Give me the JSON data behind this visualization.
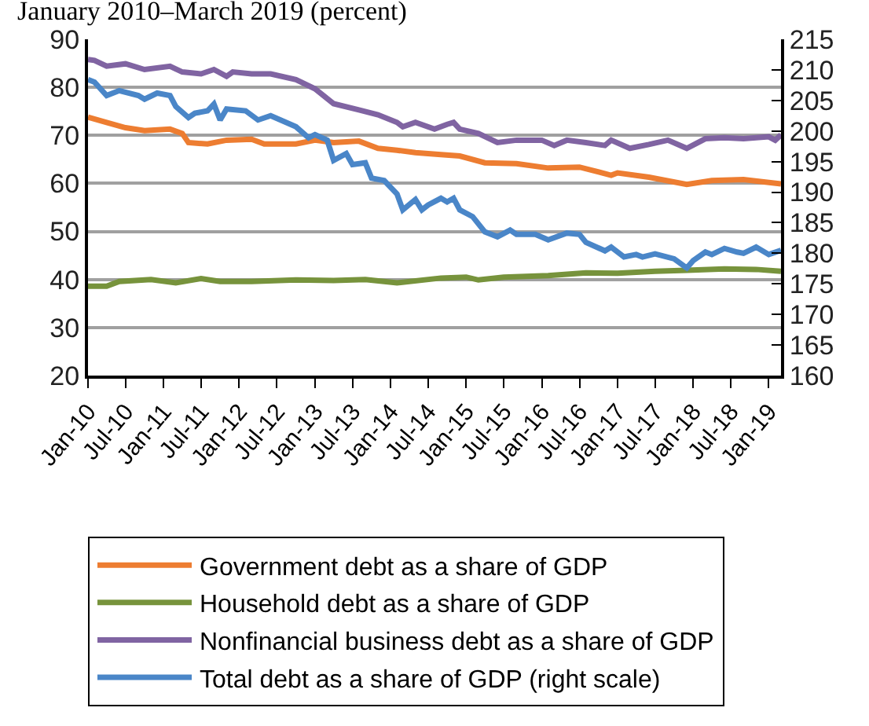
{
  "chart_data": {
    "type": "line",
    "title": "January 2010–March 2019 (percent)",
    "xlim": [
      "2010-01",
      "2019-03"
    ],
    "xticks": [
      {
        "value": "2010-01",
        "label": "Jan-10"
      },
      {
        "value": "2010-07",
        "label": "Jul-10"
      },
      {
        "value": "2011-01",
        "label": "Jan-11"
      },
      {
        "value": "2011-07",
        "label": "Jul-11"
      },
      {
        "value": "2012-01",
        "label": "Jan-12"
      },
      {
        "value": "2012-07",
        "label": "Jul-12"
      },
      {
        "value": "2013-01",
        "label": "Jan-13"
      },
      {
        "value": "2013-07",
        "label": "Jul-13"
      },
      {
        "value": "2014-01",
        "label": "Jan-14"
      },
      {
        "value": "2014-07",
        "label": "Jul-14"
      },
      {
        "value": "2015-01",
        "label": "Jan-15"
      },
      {
        "value": "2015-07",
        "label": "Jul-15"
      },
      {
        "value": "2016-01",
        "label": "Jan-16"
      },
      {
        "value": "2016-07",
        "label": "Jul-16"
      },
      {
        "value": "2017-01",
        "label": "Jan-17"
      },
      {
        "value": "2017-07",
        "label": "Jul-17"
      },
      {
        "value": "2018-01",
        "label": "Jan-18"
      },
      {
        "value": "2018-07",
        "label": "Jul-18"
      },
      {
        "value": "2019-01",
        "label": "Jan-19"
      }
    ],
    "ylim": [
      20,
      90
    ],
    "yticks": [
      20,
      30,
      40,
      50,
      60,
      70,
      80,
      90
    ],
    "y2lim": [
      160,
      215
    ],
    "y2ticks": [
      160,
      165,
      170,
      175,
      180,
      185,
      190,
      195,
      200,
      205,
      210,
      215
    ],
    "grid": "y",
    "legend": "bottom",
    "line_style": "solid",
    "marker": "none",
    "series": [
      {
        "name": "Government debt as a share of GDP",
        "color": "#ed7d31",
        "x": [
          "2010-01",
          "2010-04",
          "2010-07",
          "2010-10",
          "2011-02",
          "2011-04",
          "2011-05",
          "2011-08",
          "2011-11",
          "2012-03",
          "2012-05",
          "2012-10",
          "2013-01",
          "2013-04",
          "2013-08",
          "2013-11",
          "2014-02",
          "2014-05",
          "2014-09",
          "2014-12",
          "2015-04",
          "2015-09",
          "2016-02",
          "2016-07",
          "2016-12",
          "2017-01",
          "2017-06",
          "2017-12",
          "2018-04",
          "2018-09",
          "2019-03"
        ],
        "values": [
          73.8,
          72.7,
          71.6,
          71.0,
          71.3,
          70.4,
          68.5,
          68.2,
          69.0,
          69.2,
          68.2,
          68.2,
          69.0,
          68.5,
          68.8,
          67.3,
          66.9,
          66.4,
          66.0,
          65.7,
          64.3,
          64.1,
          63.2,
          63.4,
          61.7,
          62.2,
          61.3,
          59.8,
          60.6,
          60.8,
          59.9
        ]
      },
      {
        "name": "Household debt as a share of GDP",
        "color": "#77933c",
        "x": [
          "2010-01",
          "2010-04",
          "2010-06",
          "2010-11",
          "2011-03",
          "2011-07",
          "2011-10",
          "2012-03",
          "2012-10",
          "2013-04",
          "2013-09",
          "2014-02",
          "2014-09",
          "2015-01",
          "2015-03",
          "2015-07",
          "2016-02",
          "2016-08",
          "2017-01",
          "2017-07",
          "2017-12",
          "2018-06",
          "2018-11",
          "2019-03"
        ],
        "values": [
          38.6,
          38.6,
          39.6,
          40.0,
          39.3,
          40.2,
          39.6,
          39.6,
          39.9,
          39.8,
          40.0,
          39.3,
          40.3,
          40.5,
          39.9,
          40.5,
          40.8,
          41.4,
          41.3,
          41.7,
          41.9,
          42.2,
          42.1,
          41.7
        ]
      },
      {
        "name": "Nonfinancial business debt as a share of GDP",
        "color": "#8064a2",
        "x": [
          "2010-01",
          "2010-02",
          "2010-04",
          "2010-07",
          "2010-10",
          "2011-02",
          "2011-04",
          "2011-07",
          "2011-09",
          "2011-11",
          "2011-12",
          "2012-03",
          "2012-06",
          "2012-10",
          "2013-01",
          "2013-04",
          "2013-08",
          "2013-11",
          "2014-02",
          "2014-03",
          "2014-05",
          "2014-08",
          "2014-10",
          "2014-11",
          "2014-12",
          "2015-03",
          "2015-06",
          "2015-09",
          "2016-01",
          "2016-03",
          "2016-05",
          "2016-08",
          "2016-11",
          "2016-12",
          "2017-03",
          "2017-06",
          "2017-09",
          "2017-12",
          "2018-03",
          "2018-06",
          "2018-09",
          "2019-01",
          "2019-02",
          "2019-03"
        ],
        "values": [
          85.8,
          85.6,
          84.4,
          84.9,
          83.7,
          84.4,
          83.2,
          82.8,
          83.7,
          82.3,
          83.2,
          82.8,
          82.8,
          81.6,
          79.7,
          76.6,
          75.3,
          74.3,
          72.7,
          71.8,
          72.7,
          71.3,
          72.3,
          72.7,
          71.3,
          70.4,
          68.5,
          69.0,
          69.0,
          67.9,
          69.0,
          68.5,
          67.9,
          69.0,
          67.3,
          68.1,
          69.0,
          67.3,
          69.3,
          69.5,
          69.3,
          69.7,
          69.0,
          70.1
        ]
      },
      {
        "name": "Total debt as a share of GDP (right scale)",
        "color": "#4a86c8",
        "axis": "y2",
        "x": [
          "2010-01",
          "2010-02",
          "2010-04",
          "2010-06",
          "2010-09",
          "2010-10",
          "2010-12",
          "2011-02",
          "2011-03",
          "2011-05",
          "2011-06",
          "2011-08",
          "2011-09",
          "2011-10",
          "2011-11",
          "2012-02",
          "2012-04",
          "2012-06",
          "2012-10",
          "2012-12",
          "2013-01",
          "2013-03",
          "2013-04",
          "2013-06",
          "2013-07",
          "2013-09",
          "2013-10",
          "2013-12",
          "2014-02",
          "2014-03",
          "2014-05",
          "2014-06",
          "2014-07",
          "2014-09",
          "2014-10",
          "2014-11",
          "2014-12",
          "2015-02",
          "2015-04",
          "2015-06",
          "2015-08",
          "2015-09",
          "2015-12",
          "2016-02",
          "2016-05",
          "2016-07",
          "2016-08",
          "2016-11",
          "2016-12",
          "2017-02",
          "2017-04",
          "2017-05",
          "2017-07",
          "2017-10",
          "2017-12",
          "2018-01",
          "2018-03",
          "2018-04",
          "2018-06",
          "2018-08",
          "2018-09",
          "2018-11",
          "2019-01",
          "2019-03"
        ],
        "values": [
          208.4,
          208.0,
          205.8,
          206.6,
          205.8,
          205.2,
          206.2,
          205.8,
          204.0,
          202.2,
          202.9,
          203.3,
          204.4,
          201.8,
          203.6,
          203.3,
          201.8,
          202.5,
          200.7,
          198.9,
          199.4,
          198.5,
          195.2,
          196.3,
          194.5,
          194.8,
          192.3,
          191.9,
          189.7,
          187.1,
          188.8,
          187.1,
          187.9,
          189.0,
          188.4,
          189.0,
          187.1,
          186.0,
          183.5,
          182.7,
          183.8,
          183.1,
          183.1,
          182.2,
          183.3,
          183.1,
          181.8,
          180.4,
          181.0,
          179.4,
          179.8,
          179.4,
          179.9,
          179.1,
          177.6,
          178.8,
          180.2,
          179.8,
          180.8,
          180.2,
          180.0,
          181.0,
          179.8,
          180.5
        ]
      }
    ]
  }
}
